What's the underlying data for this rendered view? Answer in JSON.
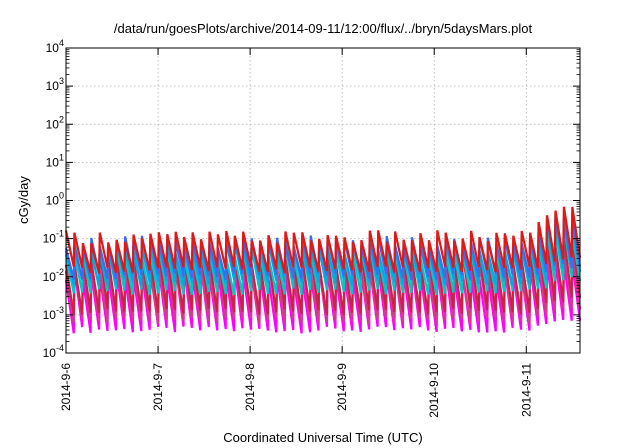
{
  "chart_data": {
    "type": "line",
    "title": "/data/run/goesPlots/archive/2014-09-11/12:00/flux/../bryn/5daysMars.plot",
    "xlabel": "Coordinated Universal Time (UTC)",
    "ylabel": "cGy/day",
    "y_scale": "log",
    "ylim": [
      0.0001,
      10000
    ],
    "xlim": [
      "2014-09-06 00:00",
      "2014-09-11 14:00"
    ],
    "x_tick_labels": [
      "2014-9-6",
      "2014-9-7",
      "2014-9-8",
      "2014-9-9",
      "2014-9-10",
      "2014-9-11"
    ],
    "y_tick_labels": [
      {
        "base": "10",
        "exp": "4"
      },
      {
        "base": "10",
        "exp": "3"
      },
      {
        "base": "10",
        "exp": "2"
      },
      {
        "base": "10",
        "exp": "1"
      },
      {
        "base": "10",
        "exp": "0"
      },
      {
        "base": "10",
        "exp": "-1"
      },
      {
        "base": "10",
        "exp": "-2"
      },
      {
        "base": "10",
        "exp": "-3"
      },
      {
        "base": "10",
        "exp": "-4"
      }
    ],
    "grid": true,
    "oscillation_period_hours": 2.2,
    "series": [
      {
        "color": "#ff00ff",
        "peak": 0.012,
        "trough": 0.0004,
        "late_peak": 0.03
      },
      {
        "color": "#d63a8a",
        "peak": 0.018,
        "trough": 0.0007,
        "late_peak": 0.05
      },
      {
        "color": "#cc2244",
        "peak": 0.03,
        "trough": 0.0012,
        "late_peak": 0.08
      },
      {
        "color": "#00c8c8",
        "peak": 0.045,
        "trough": 0.004,
        "late_peak": 0.15
      },
      {
        "color": "#00a8e8",
        "peak": 0.06,
        "trough": 0.007,
        "late_peak": 0.25
      },
      {
        "color": "#3a6df0",
        "peak": 0.08,
        "trough": 0.01,
        "late_peak": 0.4
      },
      {
        "color": "#e01818",
        "peak": 0.11,
        "trough": 0.015,
        "late_peak": 0.6
      }
    ]
  }
}
